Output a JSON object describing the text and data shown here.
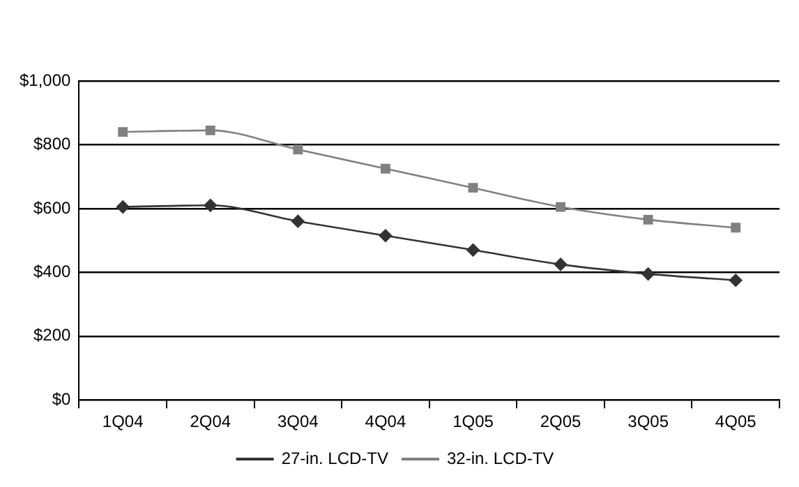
{
  "chart_data": {
    "type": "line",
    "categories": [
      "1Q04",
      "2Q04",
      "3Q04",
      "4Q04",
      "1Q05",
      "2Q05",
      "3Q05",
      "4Q05"
    ],
    "series": [
      {
        "name": "27-in. LCD-TV",
        "color": "#333333",
        "marker": "diamond",
        "values": [
          605,
          610,
          560,
          515,
          470,
          425,
          395,
          375
        ]
      },
      {
        "name": "32-in. LCD-TV",
        "color": "#808080",
        "marker": "square",
        "values": [
          840,
          845,
          785,
          725,
          665,
          605,
          565,
          540
        ]
      }
    ],
    "ylim": [
      0,
      1000
    ],
    "yticks": [
      {
        "value": 0,
        "label": "$0"
      },
      {
        "value": 200,
        "label": "$200"
      },
      {
        "value": 400,
        "label": "$400"
      },
      {
        "value": 600,
        "label": "$600"
      },
      {
        "value": 800,
        "label": "$800"
      },
      {
        "value": 1000,
        "label": "$1,000"
      }
    ],
    "grid": "y",
    "legend": "bottom"
  }
}
